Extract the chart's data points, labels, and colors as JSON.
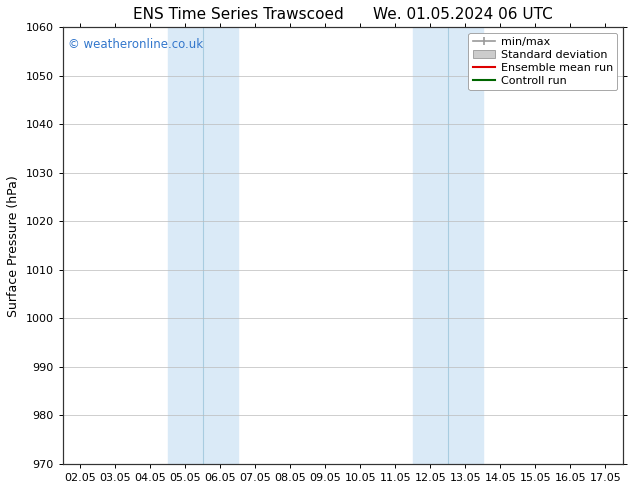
{
  "title_left": "ENS Time Series Trawscoed",
  "title_right": "We. 01.05.2024 06 UTC",
  "ylabel": "Surface Pressure (hPa)",
  "ylim": [
    970,
    1060
  ],
  "yticks": [
    970,
    980,
    990,
    1000,
    1010,
    1020,
    1030,
    1040,
    1050,
    1060
  ],
  "xtick_labels": [
    "02.05",
    "03.05",
    "04.05",
    "05.05",
    "06.05",
    "07.05",
    "08.05",
    "09.05",
    "10.05",
    "11.05",
    "12.05",
    "13.05",
    "14.05",
    "15.05",
    "16.05",
    "17.05"
  ],
  "shaded_regions": [
    {
      "xmin": 3,
      "xmax": 5,
      "color": "#daeaf7",
      "line_x": 4
    },
    {
      "xmin": 10,
      "xmax": 12,
      "color": "#daeaf7",
      "line_x": 11
    }
  ],
  "shaded_line_color": "#a8cce0",
  "background_color": "#ffffff",
  "plot_bg_color": "#ffffff",
  "grid_color": "#bbbbbb",
  "watermark_text": "© weatheronline.co.uk",
  "watermark_color": "#3377cc",
  "legend_items": [
    {
      "label": "min/max",
      "color": "#999999",
      "style": "errorbar"
    },
    {
      "label": "Standard deviation",
      "color": "#cccccc",
      "style": "rect"
    },
    {
      "label": "Ensemble mean run",
      "color": "#dd0000",
      "style": "line"
    },
    {
      "label": "Controll run",
      "color": "#006600",
      "style": "line"
    }
  ],
  "title_fontsize": 11,
  "tick_fontsize": 8,
  "ylabel_fontsize": 9,
  "legend_fontsize": 8
}
